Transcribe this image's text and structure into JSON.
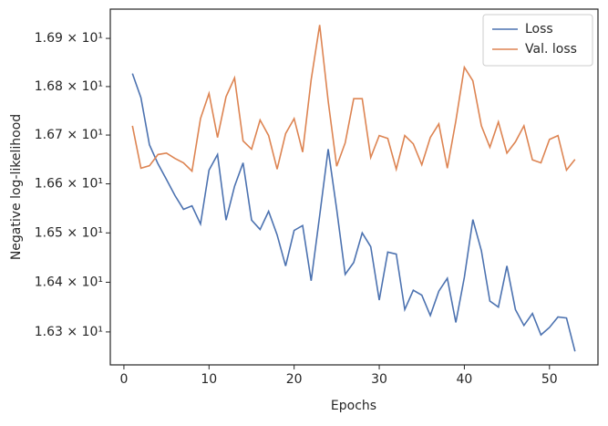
{
  "chart_data": {
    "type": "line",
    "xlabel": "Epochs",
    "ylabel": "Negative log-likelihood",
    "x": [
      1,
      2,
      3,
      4,
      5,
      6,
      7,
      8,
      9,
      10,
      11,
      12,
      13,
      14,
      15,
      16,
      17,
      18,
      19,
      20,
      21,
      22,
      23,
      24,
      25,
      26,
      27,
      28,
      29,
      30,
      31,
      32,
      33,
      34,
      35,
      36,
      37,
      38,
      39,
      40,
      41,
      42,
      43,
      44,
      45,
      46,
      47,
      48,
      49,
      50,
      51,
      52,
      53
    ],
    "series": [
      {
        "name": "Loss",
        "color": "#4c72b0",
        "values": [
          16.827,
          16.777,
          16.68,
          16.641,
          16.609,
          16.576,
          16.548,
          16.555,
          16.518,
          16.628,
          16.66,
          16.526,
          16.595,
          16.643,
          16.526,
          16.507,
          16.544,
          16.496,
          16.433,
          16.505,
          16.515,
          16.403,
          16.535,
          16.671,
          16.548,
          16.416,
          16.44,
          16.5,
          16.472,
          16.364,
          16.461,
          16.457,
          16.345,
          16.384,
          16.374,
          16.333,
          16.382,
          16.408,
          16.319,
          16.41,
          16.527,
          16.464,
          16.362,
          16.35,
          16.433,
          16.345,
          16.313,
          16.337,
          16.294,
          16.309,
          16.33,
          16.328,
          16.261
        ]
      },
      {
        "name": "Val. loss",
        "color": "#dd8452",
        "values": [
          16.719,
          16.632,
          16.637,
          16.66,
          16.663,
          16.652,
          16.643,
          16.626,
          16.734,
          16.786,
          16.695,
          16.779,
          16.818,
          16.688,
          16.671,
          16.731,
          16.699,
          16.63,
          16.703,
          16.734,
          16.665,
          16.814,
          16.928,
          16.77,
          16.636,
          16.684,
          16.775,
          16.775,
          16.654,
          16.699,
          16.693,
          16.63,
          16.699,
          16.682,
          16.639,
          16.695,
          16.723,
          16.632,
          16.729,
          16.84,
          16.812,
          16.719,
          16.675,
          16.727,
          16.663,
          16.686,
          16.719,
          16.649,
          16.643,
          16.691,
          16.699,
          16.628,
          16.65
        ]
      }
    ],
    "xlim": [
      -1.6,
      55.7
    ],
    "xticks": [
      0,
      10,
      20,
      30,
      40,
      50
    ],
    "ylim": [
      16.234,
      16.961
    ],
    "yscale": "log",
    "yticks": [
      {
        "value": 16.3,
        "label": "1.63 × 10¹"
      },
      {
        "value": 16.4,
        "label": "1.64 × 10¹"
      },
      {
        "value": 16.5,
        "label": "1.65 × 10¹"
      },
      {
        "value": 16.6,
        "label": "1.66 × 10¹"
      },
      {
        "value": 16.7,
        "label": "1.67 × 10¹"
      },
      {
        "value": 16.8,
        "label": "1.68 × 10¹"
      },
      {
        "value": 16.9,
        "label": "1.69 × 10¹"
      }
    ],
    "grid": false,
    "legend": "upper right"
  }
}
